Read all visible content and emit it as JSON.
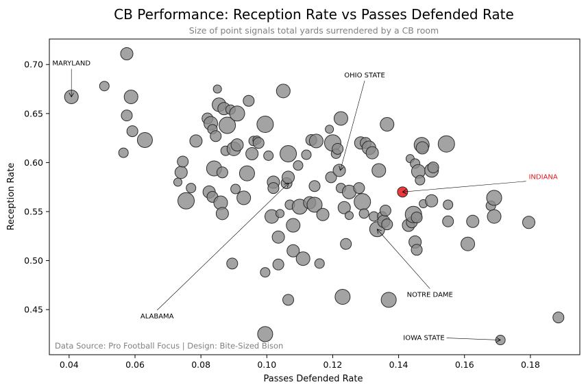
{
  "chart_data": {
    "type": "scatter",
    "title": "CB Performance: Reception Rate vs Passes Defended Rate",
    "subtitle": "Size of point signals total yards surrendered by a CB room",
    "xlabel": "Passes Defended Rate",
    "ylabel": "Reception Rate",
    "xlim": [
      0.034,
      0.195
    ],
    "ylim": [
      0.404,
      0.726
    ],
    "xticks": [
      "0.04",
      "0.06",
      "0.08",
      "0.10",
      "0.12",
      "0.14",
      "0.16",
      "0.18"
    ],
    "yticks": [
      "0.45",
      "0.50",
      "0.55",
      "0.60",
      "0.65",
      "0.70"
    ],
    "source": "Data Source: Pro Football Focus | Design: Bite-Sized Bison",
    "colors": {
      "point": "#8c8c8c",
      "highlight": "#e8181b",
      "edge": "#2b2b2b",
      "highlight_text": "#e8181b"
    },
    "annotations": [
      {
        "label": "MARYLAND",
        "x": 0.0407,
        "y": 0.667,
        "text_x": 0.0407,
        "text_y": 0.699,
        "color": "#000000"
      },
      {
        "label": "OHIO STATE",
        "x": 0.1223,
        "y": 0.592,
        "text_x": 0.1297,
        "text_y": 0.687,
        "color": "#000000"
      },
      {
        "label": "INDIANA",
        "x": 0.1412,
        "y": 0.57,
        "text_x": 0.1795,
        "text_y": 0.583,
        "color": "#e8181b"
      },
      {
        "label": "ALABAMA",
        "x": 0.1066,
        "y": 0.579,
        "text_x": 0.0667,
        "text_y": 0.441,
        "color": "#000000"
      },
      {
        "label": "NOTRE DAME",
        "x": 0.1335,
        "y": 0.532,
        "text_x": 0.1495,
        "text_y": 0.463,
        "color": "#000000"
      },
      {
        "label": "IOWA STATE",
        "x": 0.1709,
        "y": 0.419,
        "text_x": 0.1475,
        "text_y": 0.419,
        "color": "#000000"
      }
    ],
    "points": [
      [
        0.0407,
        0.667,
        0
      ],
      [
        0.0507,
        0.678,
        0
      ],
      [
        0.0575,
        0.711,
        0
      ],
      [
        0.0575,
        0.648,
        0
      ],
      [
        0.0588,
        0.667,
        0
      ],
      [
        0.0592,
        0.632,
        0
      ],
      [
        0.063,
        0.623,
        0
      ],
      [
        0.0565,
        0.61,
        0
      ],
      [
        0.074,
        0.59,
        0
      ],
      [
        0.073,
        0.58,
        0
      ],
      [
        0.0745,
        0.601,
        0
      ],
      [
        0.0755,
        0.561,
        0
      ],
      [
        0.077,
        0.574,
        0
      ],
      [
        0.0785,
        0.622,
        0
      ],
      [
        0.082,
        0.645,
        0
      ],
      [
        0.083,
        0.64,
        0
      ],
      [
        0.0835,
        0.634,
        0
      ],
      [
        0.084,
        0.594,
        0
      ],
      [
        0.0825,
        0.57,
        0
      ],
      [
        0.0835,
        0.565,
        0
      ],
      [
        0.085,
        0.675,
        0
      ],
      [
        0.0855,
        0.659,
        0
      ],
      [
        0.0845,
        0.627,
        0
      ],
      [
        0.087,
        0.655,
        0
      ],
      [
        0.088,
        0.638,
        0
      ],
      [
        0.0875,
        0.612,
        0
      ],
      [
        0.0865,
        0.59,
        0
      ],
      [
        0.086,
        0.559,
        0
      ],
      [
        0.0865,
        0.548,
        0
      ],
      [
        0.089,
        0.654,
        0
      ],
      [
        0.091,
        0.65,
        0
      ],
      [
        0.09,
        0.614,
        0
      ],
      [
        0.0905,
        0.573,
        0
      ],
      [
        0.091,
        0.618,
        0
      ],
      [
        0.0895,
        0.497,
        0
      ],
      [
        0.093,
        0.564,
        0
      ],
      [
        0.0945,
        0.663,
        0
      ],
      [
        0.094,
        0.589,
        0
      ],
      [
        0.096,
        0.622,
        0
      ],
      [
        0.0955,
        0.609,
        0
      ],
      [
        0.097,
        0.623,
        0
      ],
      [
        0.0975,
        0.62,
        0
      ],
      [
        0.0995,
        0.639,
        0
      ],
      [
        0.1005,
        0.607,
        0
      ],
      [
        0.102,
        0.58,
        0
      ],
      [
        0.102,
        0.574,
        0
      ],
      [
        0.1015,
        0.545,
        0
      ],
      [
        0.0995,
        0.488,
        0
      ],
      [
        0.0995,
        0.425,
        0
      ],
      [
        0.1035,
        0.524,
        0
      ],
      [
        0.1035,
        0.496,
        0
      ],
      [
        0.104,
        0.548,
        0
      ],
      [
        0.105,
        0.673,
        0
      ],
      [
        0.106,
        0.579,
        0
      ],
      [
        0.1065,
        0.585,
        0
      ],
      [
        0.1065,
        0.609,
        0
      ],
      [
        0.107,
        0.557,
        0
      ],
      [
        0.1065,
        0.46,
        0
      ],
      [
        0.108,
        0.536,
        0
      ],
      [
        0.108,
        0.51,
        0
      ],
      [
        0.1095,
        0.597,
        0
      ],
      [
        0.11,
        0.555,
        0
      ],
      [
        0.111,
        0.502,
        0
      ],
      [
        0.112,
        0.608,
        0
      ],
      [
        0.113,
        0.559,
        0
      ],
      [
        0.1135,
        0.623,
        0
      ],
      [
        0.115,
        0.622,
        0
      ],
      [
        0.1145,
        0.576,
        0
      ],
      [
        0.1145,
        0.557,
        0
      ],
      [
        0.116,
        0.497,
        0
      ],
      [
        0.117,
        0.547,
        0
      ],
      [
        0.119,
        0.634,
        0
      ],
      [
        0.1195,
        0.585,
        0
      ],
      [
        0.12,
        0.62,
        0
      ],
      [
        0.121,
        0.609,
        0
      ],
      [
        0.122,
        0.592,
        0
      ],
      [
        0.1215,
        0.614,
        0
      ],
      [
        0.1225,
        0.645,
        0
      ],
      [
        0.1225,
        0.574,
        0
      ],
      [
        0.123,
        0.463,
        0
      ],
      [
        0.1235,
        0.554,
        0
      ],
      [
        0.124,
        0.517,
        0
      ],
      [
        0.125,
        0.546,
        0
      ],
      [
        0.125,
        0.57,
        0
      ],
      [
        0.128,
        0.574,
        0
      ],
      [
        0.1285,
        0.62,
        0
      ],
      [
        0.129,
        0.56,
        0
      ],
      [
        0.1295,
        0.548,
        0
      ],
      [
        0.13,
        0.62,
        0
      ],
      [
        0.131,
        0.615,
        0
      ],
      [
        0.132,
        0.61,
        0
      ],
      [
        0.1325,
        0.545,
        0
      ],
      [
        0.1335,
        0.532,
        0
      ],
      [
        0.134,
        0.592,
        0
      ],
      [
        0.135,
        0.545,
        0
      ],
      [
        0.1355,
        0.54,
        0
      ],
      [
        0.136,
        0.551,
        0
      ],
      [
        0.1365,
        0.639,
        0
      ],
      [
        0.1365,
        0.537,
        0
      ],
      [
        0.137,
        0.46,
        0
      ],
      [
        0.1412,
        0.57,
        1
      ],
      [
        0.143,
        0.536,
        0
      ],
      [
        0.1435,
        0.604,
        0
      ],
      [
        0.144,
        0.539,
        0
      ],
      [
        0.1445,
        0.547,
        0
      ],
      [
        0.145,
        0.599,
        0
      ],
      [
        0.145,
        0.519,
        0
      ],
      [
        0.1455,
        0.544,
        0
      ],
      [
        0.146,
        0.591,
        0
      ],
      [
        0.1465,
        0.582,
        0
      ],
      [
        0.147,
        0.618,
        0
      ],
      [
        0.1472,
        0.615,
        0
      ],
      [
        0.1455,
        0.511,
        0
      ],
      [
        0.1475,
        0.558,
        0
      ],
      [
        0.15,
        0.592,
        0
      ],
      [
        0.1505,
        0.595,
        0
      ],
      [
        0.15,
        0.561,
        0
      ],
      [
        0.1545,
        0.619,
        0
      ],
      [
        0.155,
        0.557,
        0
      ],
      [
        0.155,
        0.54,
        0
      ],
      [
        0.161,
        0.517,
        0
      ],
      [
        0.1625,
        0.54,
        0
      ],
      [
        0.168,
        0.556,
        0
      ],
      [
        0.169,
        0.564,
        0
      ],
      [
        0.169,
        0.545,
        0
      ],
      [
        0.1709,
        0.419,
        0
      ],
      [
        0.1795,
        0.539,
        0
      ],
      [
        0.1885,
        0.442,
        0
      ]
    ]
  }
}
